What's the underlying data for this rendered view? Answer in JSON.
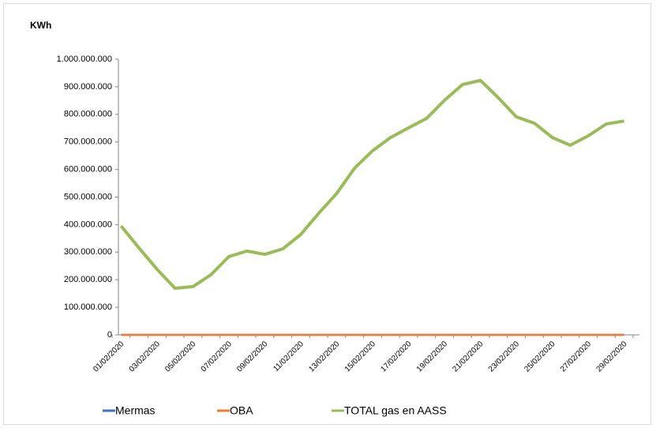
{
  "chart_data": {
    "type": "line",
    "title": "KWh",
    "categories": [
      "01/02/2020",
      null,
      "03/02/2020",
      null,
      "05/02/2020",
      null,
      "07/02/2020",
      null,
      "09/02/2020",
      null,
      "11/02/2020",
      null,
      "13/02/2020",
      null,
      "15/02/2020",
      null,
      "17/02/2020",
      null,
      "19/02/2020",
      null,
      "21/02/2020",
      null,
      "23/02/2020",
      null,
      "25/02/2020",
      null,
      "27/02/2020",
      null,
      "29/02/2020"
    ],
    "series": [
      {
        "name": "Mermas",
        "color": "#4472c4",
        "values": [
          0,
          0,
          0,
          0,
          0,
          0,
          0,
          0,
          0,
          0,
          0,
          0,
          0,
          0,
          0,
          0,
          0,
          0,
          0,
          0,
          0,
          0,
          0,
          0,
          0,
          0,
          0,
          0,
          0
        ]
      },
      {
        "name": "OBA",
        "color": "#ed7d31",
        "values": [
          0,
          0,
          0,
          0,
          0,
          0,
          0,
          0,
          0,
          0,
          0,
          0,
          0,
          0,
          0,
          0,
          0,
          0,
          0,
          0,
          0,
          0,
          0,
          0,
          0,
          0,
          0,
          0,
          0
        ]
      },
      {
        "name": "TOTAL gas en AASS",
        "color": "#9bbb59",
        "values": [
          395000000,
          315000000,
          238000000,
          169000000,
          175000000,
          218000000,
          284000000,
          304000000,
          292000000,
          312000000,
          364000000,
          441000000,
          513000000,
          605000000,
          668000000,
          716000000,
          751000000,
          785000000,
          851000000,
          908000000,
          923000000,
          860000000,
          791000000,
          768000000,
          716000000,
          688000000,
          722000000,
          765000000,
          776000000
        ]
      }
    ],
    "ylim": [
      0,
      1000000000
    ],
    "yticks": [
      0,
      {
        "value": 100000000,
        "label": "100.000.000"
      },
      {
        "value": 200000000,
        "label": "200.000.000"
      },
      {
        "value": 300000000,
        "label": "300.000.000"
      },
      {
        "value": 400000000,
        "label": "400.000.000"
      },
      {
        "value": 500000000,
        "label": "500.000.000"
      },
      {
        "value": 600000000,
        "label": "600.000.000"
      },
      {
        "value": 700000000,
        "label": "700.000.000"
      },
      {
        "value": 800000000,
        "label": "800.000.000"
      },
      {
        "value": 900000000,
        "label": "900.000.000"
      },
      {
        "value": 1000000000,
        "label": "1.000.000.000"
      }
    ],
    "legend": "bottom"
  }
}
